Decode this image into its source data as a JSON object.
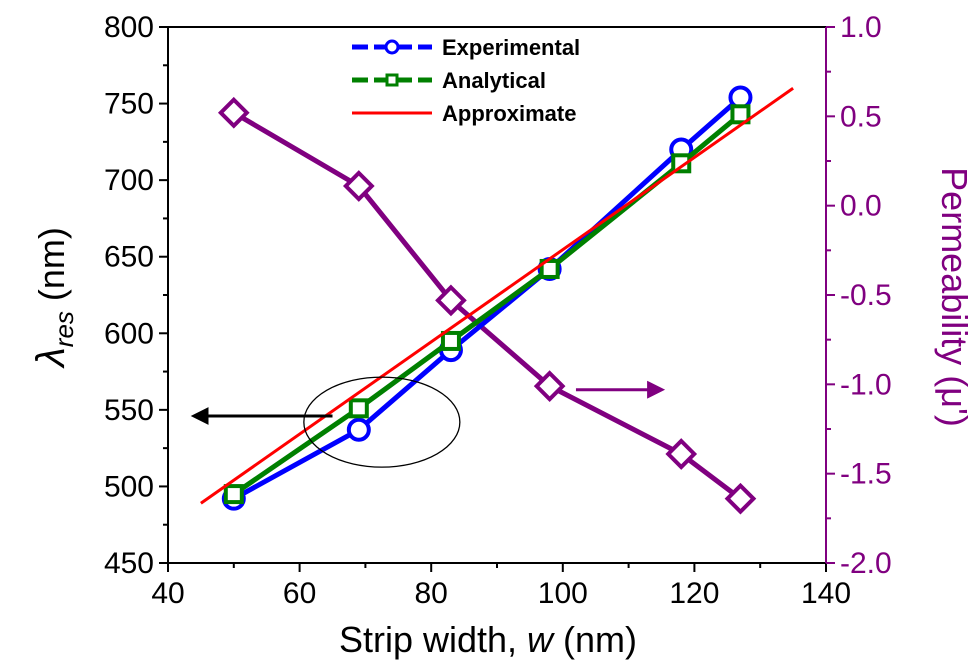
{
  "chart_data": {
    "type": "line",
    "x_axis": {
      "label_main": "Strip width, ",
      "label_var": "w",
      "label_unit": " (nm)",
      "range": [
        40,
        140
      ],
      "ticks": [
        "40",
        "60",
        "80",
        "100",
        "120",
        "140"
      ]
    },
    "y_left_axis": {
      "label_symbol": "λ",
      "label_sub": "res",
      "label_unit": " (nm)",
      "range": [
        450,
        800
      ],
      "ticks": [
        "450",
        "500",
        "550",
        "600",
        "650",
        "700",
        "750",
        "800"
      ]
    },
    "y_right_axis": {
      "label": "Permeability (μ')",
      "range": [
        -2.0,
        1.0
      ],
      "ticks": [
        "-2.0",
        "-1.5",
        "-1.0",
        "-0.5",
        "0.0",
        "0.5",
        "1.0"
      ],
      "color": "#800080"
    },
    "series": [
      {
        "name": "Experimental",
        "axis": "left",
        "color": "#0000ff",
        "marker": "circle",
        "x": [
          50,
          69,
          83,
          98,
          118,
          127
        ],
        "y": [
          492,
          537,
          589,
          642,
          720,
          754
        ]
      },
      {
        "name": "Analytical",
        "axis": "left",
        "color": "#008000",
        "marker": "square",
        "x": [
          50,
          69,
          83,
          98,
          118,
          127
        ],
        "y": [
          495,
          551,
          595,
          642,
          711,
          743
        ]
      },
      {
        "name": "Approximate",
        "axis": "left",
        "color": "#ff0000",
        "marker": "none",
        "x": [
          45,
          135
        ],
        "y": [
          489,
          760
        ]
      },
      {
        "axis": "right",
        "color": "#800080",
        "marker": "diamond",
        "x": [
          50,
          69,
          83,
          98,
          118,
          127
        ],
        "y": [
          0.52,
          0.11,
          -0.53,
          -1.01,
          -1.39,
          -1.64
        ]
      }
    ],
    "legend": {
      "position": "top-center",
      "entries": [
        "Experimental",
        "Analytical",
        "Approximate"
      ]
    },
    "annotations": [
      {
        "type": "ellipse-arrow",
        "points_to": "left axis"
      },
      {
        "type": "arrow",
        "points_to": "right axis",
        "color": "#800080"
      }
    ]
  }
}
